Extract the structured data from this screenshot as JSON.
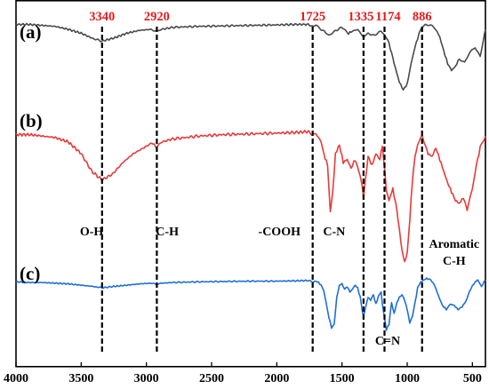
{
  "colors": {
    "peak_label": "#e41a1c",
    "axis": "#000000",
    "marker_line": "#000000"
  },
  "chart_data": {
    "type": "line",
    "title": "",
    "xlabel": "",
    "ylabel": "",
    "x_reversed": true,
    "xlim": [
      4000,
      400
    ],
    "y_axis_shown": false,
    "grid": false,
    "x_ticks": [
      4000,
      3500,
      3000,
      2500,
      2000,
      1500,
      1000,
      500
    ],
    "x_tick_labels": [
      "4000",
      "3500",
      "3000",
      "2500",
      "2000",
      "1500",
      "1000",
      "500"
    ],
    "marker_lines": [
      {
        "x": 3340,
        "label": "3340"
      },
      {
        "x": 2920,
        "label": "2920"
      },
      {
        "x": 1725,
        "label": "1725"
      },
      {
        "x": 1335,
        "label": "1335"
      },
      {
        "x": 1174,
        "label": "1174"
      },
      {
        "x": 886,
        "label": "886"
      }
    ],
    "band_labels": [
      {
        "text": "O-H",
        "x": 3420
      },
      {
        "text": "C-H",
        "x": 2840
      },
      {
        "text": "-COOH",
        "x": 1980
      },
      {
        "text": "C-N",
        "x": 1560
      },
      {
        "text": "C=N",
        "x": 1150
      },
      {
        "text": "Aromatic",
        "x": 640
      },
      {
        "text": "C-H",
        "x": 640
      }
    ],
    "series": [
      {
        "name": "(a)",
        "color": "#4a4a4a",
        "x": [
          4000,
          3900,
          3800,
          3700,
          3600,
          3500,
          3400,
          3340,
          3250,
          3150,
          3050,
          2960,
          2920,
          2880,
          2800,
          2600,
          2400,
          2200,
          2000,
          1850,
          1760,
          1725,
          1700,
          1660,
          1600,
          1560,
          1500,
          1450,
          1420,
          1380,
          1335,
          1300,
          1250,
          1200,
          1174,
          1150,
          1120,
          1090,
          1060,
          1030,
          1000,
          970,
          940,
          910,
          886,
          860,
          820,
          780,
          750,
          720,
          690,
          660,
          630,
          600,
          560,
          520,
          480,
          440,
          400
        ],
        "y": [
          0.95,
          0.95,
          0.94,
          0.93,
          0.9,
          0.86,
          0.8,
          0.78,
          0.81,
          0.86,
          0.89,
          0.9,
          0.88,
          0.9,
          0.92,
          0.93,
          0.935,
          0.94,
          0.945,
          0.95,
          0.95,
          0.93,
          0.94,
          0.9,
          0.84,
          0.88,
          0.92,
          0.86,
          0.88,
          0.9,
          0.82,
          0.86,
          0.84,
          0.88,
          0.84,
          0.8,
          0.66,
          0.5,
          0.36,
          0.28,
          0.34,
          0.55,
          0.72,
          0.85,
          0.92,
          0.95,
          0.94,
          0.9,
          0.82,
          0.68,
          0.55,
          0.48,
          0.52,
          0.6,
          0.56,
          0.66,
          0.72,
          0.62,
          0.9
        ]
      },
      {
        "name": "(b)",
        "color": "#e83a3a",
        "x": [
          4000,
          3900,
          3800,
          3700,
          3600,
          3500,
          3420,
          3340,
          3260,
          3180,
          3100,
          3000,
          2950,
          2920,
          2880,
          2800,
          2600,
          2400,
          2200,
          2000,
          1850,
          1760,
          1725,
          1700,
          1660,
          1640,
          1610,
          1590,
          1570,
          1550,
          1520,
          1490,
          1460,
          1430,
          1400,
          1370,
          1345,
          1335,
          1320,
          1300,
          1270,
          1240,
          1210,
          1190,
          1174,
          1160,
          1140,
          1110,
          1080,
          1060,
          1040,
          1020,
          1000,
          980,
          960,
          940,
          920,
          900,
          886,
          870,
          840,
          810,
          780,
          750,
          720,
          690,
          660,
          630,
          600,
          570,
          540,
          500,
          470,
          440,
          400
        ],
        "y": [
          0.93,
          0.93,
          0.92,
          0.91,
          0.88,
          0.8,
          0.68,
          0.62,
          0.66,
          0.74,
          0.8,
          0.85,
          0.87,
          0.84,
          0.88,
          0.9,
          0.92,
          0.93,
          0.935,
          0.94,
          0.945,
          0.95,
          0.93,
          0.94,
          0.88,
          0.8,
          0.72,
          0.4,
          0.55,
          0.8,
          0.86,
          0.74,
          0.76,
          0.7,
          0.76,
          0.68,
          0.58,
          0.5,
          0.62,
          0.78,
          0.72,
          0.8,
          0.76,
          0.86,
          0.7,
          0.55,
          0.48,
          0.56,
          0.42,
          0.28,
          0.14,
          0.06,
          0.12,
          0.35,
          0.62,
          0.78,
          0.86,
          0.9,
          0.92,
          0.88,
          0.8,
          0.78,
          0.84,
          0.76,
          0.68,
          0.6,
          0.54,
          0.48,
          0.46,
          0.5,
          0.42,
          0.56,
          0.72,
          0.84,
          0.92
        ]
      },
      {
        "name": "(c)",
        "color": "#1f6fd6",
        "x": [
          4000,
          3900,
          3800,
          3700,
          3600,
          3500,
          3400,
          3340,
          3260,
          3150,
          3050,
          2960,
          2920,
          2880,
          2800,
          2600,
          2400,
          2200,
          2000,
          1850,
          1760,
          1725,
          1700,
          1680,
          1660,
          1640,
          1620,
          1600,
          1580,
          1560,
          1540,
          1520,
          1500,
          1480,
          1460,
          1440,
          1420,
          1400,
          1380,
          1360,
          1345,
          1335,
          1320,
          1300,
          1280,
          1260,
          1240,
          1220,
          1200,
          1190,
          1174,
          1160,
          1140,
          1120,
          1100,
          1080,
          1060,
          1040,
          1020,
          1000,
          980,
          960,
          940,
          920,
          900,
          886,
          870,
          850,
          820,
          790,
          760,
          730,
          700,
          670,
          640,
          610,
          580,
          550,
          520,
          490,
          460,
          430,
          400
        ],
        "y": [
          0.93,
          0.92,
          0.92,
          0.91,
          0.9,
          0.88,
          0.86,
          0.84,
          0.86,
          0.88,
          0.9,
          0.91,
          0.89,
          0.91,
          0.92,
          0.93,
          0.935,
          0.94,
          0.94,
          0.945,
          0.95,
          0.93,
          0.94,
          0.92,
          0.88,
          0.8,
          0.6,
          0.4,
          0.25,
          0.3,
          0.7,
          0.88,
          0.9,
          0.82,
          0.86,
          0.78,
          0.82,
          0.88,
          0.84,
          0.7,
          0.5,
          0.42,
          0.55,
          0.7,
          0.66,
          0.74,
          0.6,
          0.72,
          0.78,
          0.6,
          0.4,
          0.22,
          0.3,
          0.62,
          0.46,
          0.62,
          0.7,
          0.74,
          0.66,
          0.52,
          0.32,
          0.42,
          0.62,
          0.84,
          0.92,
          0.94,
          0.96,
          0.98,
          0.96,
          0.88,
          0.72,
          0.58,
          0.52,
          0.6,
          0.58,
          0.52,
          0.56,
          0.64,
          0.8,
          0.9,
          0.96,
          0.86,
          0.96
        ]
      }
    ]
  }
}
